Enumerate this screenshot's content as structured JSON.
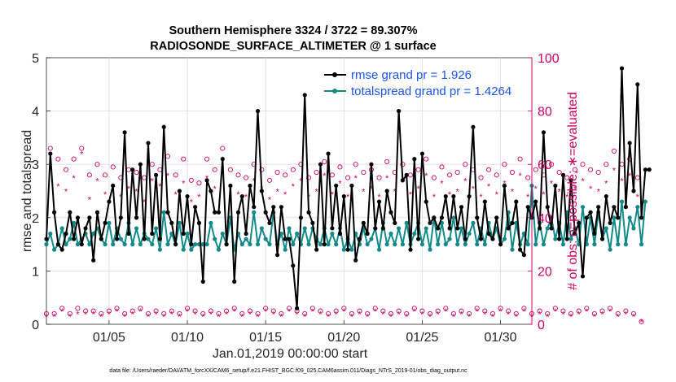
{
  "chart_data": {
    "type": "line",
    "title_line1": "Southern Hemisphere 3324 / 3722 = 89.307%",
    "title_line2": "RADIOSONDE_SURFACE_ALTIMETER @ 1 surface",
    "ylabel_left": "rmse and totalspread",
    "ylabel_right": "# of obs: o=possible; ∗=evaluated",
    "xlabel": "Jan.01,2019 00:00:00 start",
    "footnote": "data file: /Users/raeder/DAI/ATM_forcXX/CAM6_setup/f.e21.FHIST_BGC.f09_025.CAM6assim.011/Diags_NTrS_2019-01/obs_diag_output.nc",
    "xlim": [
      1,
      32
    ],
    "ylim_left": [
      0,
      5
    ],
    "ylim_right": [
      0,
      100
    ],
    "yticks_left": [
      "0",
      "1",
      "2",
      "3",
      "4",
      "5"
    ],
    "yticks_right": [
      "0",
      "20",
      "40",
      "60",
      "80",
      "100"
    ],
    "xticks": [
      {
        "value": 5,
        "label": "01/05"
      },
      {
        "value": 10,
        "label": "01/10"
      },
      {
        "value": 15,
        "label": "01/15"
      },
      {
        "value": 20,
        "label": "01/20"
      },
      {
        "value": 25,
        "label": "01/25"
      },
      {
        "value": 30,
        "label": "01/30"
      }
    ],
    "colors": {
      "rmse": "#000000",
      "spread": "#128a8a",
      "obs": "#cc0066",
      "legend_text": "#1a55e6"
    },
    "series": [
      {
        "name": "rmse",
        "legend": "rmse grand pr = 1.926",
        "x_start": 1.0,
        "x_step": 0.25,
        "values": [
          1.6,
          3.2,
          2.1,
          1.5,
          1.4,
          1.7,
          2.1,
          1.6,
          2.0,
          1.5,
          1.8,
          2.0,
          1.2,
          2.1,
          1.6,
          1.9,
          2.3,
          2.6,
          1.6,
          2.0,
          3.6,
          1.7,
          2.9,
          2.0,
          3.0,
          1.6,
          3.4,
          1.7,
          2.8,
          1.6,
          3.7,
          2.1,
          1.9,
          1.5,
          2.5,
          1.7,
          2.4,
          1.5,
          2.2,
          1.9,
          0.8,
          2.7,
          2.5,
          2.1,
          2.1,
          3.1,
          1.5,
          2.6,
          0.8,
          2.1,
          2.4,
          1.7,
          2.6,
          2.2,
          4.0,
          2.5,
          2.1,
          1.9,
          2.2,
          1.3,
          2.2,
          1.6,
          1.6,
          1.1,
          0.3,
          2.0,
          4.3,
          2.1,
          1.9,
          1.4,
          3.0,
          1.5,
          3.2,
          1.8,
          2.6,
          1.7,
          2.4,
          1.4,
          2.6,
          1.2,
          1.6,
          1.9,
          1.7,
          3.0,
          1.8,
          2.3,
          1.8,
          2.5,
          2.1,
          1.9,
          4.0,
          2.7,
          2.8,
          1.4,
          3.1,
          1.6,
          3.2,
          2.3,
          1.9,
          2.0,
          1.8,
          2.0,
          2.4,
          1.8,
          2.4,
          1.8,
          2.2,
          1.6,
          2.4,
          3.7,
          2.0,
          1.6,
          2.3,
          1.7,
          1.6,
          2.0,
          1.5,
          2.6,
          1.8,
          1.9,
          2.3,
          1.4,
          1.3,
          2.2,
          2.0,
          2.3,
          1.8,
          3.6,
          2.2,
          1.8,
          2.6,
          1.6,
          2.8,
          1.6,
          2.7,
          1.7,
          1.9,
          0.9,
          2.0,
          2.1,
          1.7,
          2.2,
          1.6,
          2.4,
          1.9,
          2.2,
          2.0,
          4.8,
          2.2,
          3.4,
          2.5,
          4.5,
          2.0,
          2.9,
          2.9
        ]
      },
      {
        "name": "totalspread",
        "legend": "totalspread grand pr = 1.4264",
        "x_start": 1.0,
        "x_step": 0.25,
        "values": [
          1.5,
          1.7,
          1.4,
          1.5,
          1.8,
          1.5,
          1.6,
          1.9,
          1.5,
          1.6,
          1.7,
          1.5,
          1.7,
          1.8,
          1.6,
          1.5,
          1.9,
          1.5,
          1.8,
          1.6,
          1.5,
          1.9,
          1.5,
          1.8,
          1.5,
          1.7,
          1.6,
          1.5,
          1.8,
          1.4,
          2.1,
          1.5,
          1.7,
          1.5,
          1.9,
          1.4,
          1.7,
          1.4,
          1.5,
          1.5,
          1.5,
          1.5,
          1.9,
          1.6,
          1.4,
          1.7,
          1.5,
          2.0,
          1.4,
          1.7,
          1.5,
          1.6,
          1.5,
          2.1,
          1.5,
          1.8,
          1.6,
          1.5,
          2.1,
          1.5,
          1.7,
          1.4,
          1.8,
          1.5,
          1.7,
          1.5,
          1.8,
          1.5,
          1.8,
          1.6,
          1.5,
          1.8,
          1.5,
          1.7,
          1.5,
          1.8,
          1.4,
          1.6,
          1.4,
          1.7,
          1.5,
          1.8,
          1.5,
          1.6,
          1.8,
          1.4,
          1.9,
          1.5,
          1.7,
          1.5,
          1.8,
          1.5,
          1.9,
          1.5,
          1.7,
          1.9,
          1.5,
          1.8,
          1.4,
          2.0,
          1.5,
          1.9,
          1.5,
          1.6,
          2.0,
          1.5,
          1.8,
          1.5,
          1.7,
          1.9,
          1.5,
          1.8,
          1.5,
          1.9,
          1.6,
          1.8,
          1.5,
          1.6,
          2.1,
          1.4,
          1.9,
          1.5,
          1.7,
          1.5,
          2.6,
          1.5,
          1.9,
          1.5,
          1.8,
          2.0,
          1.6,
          1.9,
          1.5,
          2.1,
          1.6,
          1.8,
          1.5,
          2.2,
          1.5,
          2.0,
          1.5,
          2.1,
          1.6,
          1.8,
          1.4,
          2.0,
          1.5,
          2.3,
          1.5,
          2.0,
          1.8,
          2.2,
          1.5,
          2.3
        ]
      },
      {
        "name": "obs_possible",
        "marker": "circle",
        "x_start": 1.0,
        "x_step": 0.25,
        "values": [
          4,
          66,
          4,
          62,
          6,
          58,
          4,
          62,
          6,
          66,
          5,
          56,
          5,
          60,
          4,
          56,
          5,
          59,
          6,
          55,
          4,
          58,
          5,
          57,
          6,
          55,
          4,
          60,
          5,
          58,
          4,
          63,
          5,
          56,
          4,
          62,
          6,
          54,
          5,
          53,
          4,
          62,
          5,
          58,
          4,
          66,
          5,
          58,
          6,
          56,
          4,
          55,
          5,
          60,
          4,
          58,
          6,
          54,
          5,
          57,
          4,
          56,
          6,
          58,
          5,
          60,
          4,
          55,
          6,
          57,
          5,
          61,
          4,
          56,
          5,
          59,
          6,
          55,
          4,
          60,
          5,
          57,
          4,
          58,
          6,
          55,
          5,
          61,
          4,
          57,
          5,
          60,
          4,
          56,
          6,
          58,
          5,
          62,
          4,
          55,
          5,
          59,
          6,
          56,
          4,
          57,
          5,
          60,
          4,
          58,
          6,
          55,
          5,
          58,
          4,
          56,
          6,
          60,
          5,
          57,
          4,
          62,
          6,
          55,
          4,
          58,
          5,
          56,
          4,
          60,
          6,
          57,
          5,
          55,
          4,
          58,
          5,
          60,
          6,
          58,
          4,
          57,
          5,
          60,
          6,
          65,
          4,
          60,
          5,
          62,
          4,
          55,
          1
        ]
      },
      {
        "name": "obs_evaluated",
        "marker": "asterisk",
        "x_start": 1.0,
        "x_step": 0.25,
        "values": [
          3,
          58,
          3,
          52,
          5,
          50,
          3,
          55,
          4,
          64,
          4,
          47,
          4,
          54,
          3,
          49,
          4,
          52,
          5,
          48,
          3,
          51,
          4,
          50,
          5,
          46,
          3,
          54,
          4,
          52,
          3,
          56,
          4,
          49,
          3,
          53,
          5,
          46,
          4,
          48,
          3,
          55,
          4,
          51,
          3,
          62,
          4,
          51,
          5,
          49,
          3,
          48,
          4,
          54,
          3,
          51,
          5,
          47,
          4,
          50,
          3,
          49,
          5,
          52,
          4,
          54,
          3,
          48,
          5,
          50,
          4,
          56,
          3,
          49,
          4,
          53,
          5,
          48,
          3,
          55,
          4,
          50,
          3,
          51,
          5,
          48,
          4,
          55,
          3,
          50,
          4,
          54,
          3,
          49,
          5,
          51,
          4,
          56,
          3,
          48,
          4,
          53,
          5,
          49,
          3,
          50,
          4,
          54,
          3,
          51,
          5,
          48,
          4,
          52,
          3,
          49,
          5,
          53,
          4,
          50,
          3,
          56,
          5,
          48,
          3,
          51,
          4,
          49,
          3,
          53,
          5,
          50,
          4,
          48,
          3,
          51,
          4,
          54,
          5,
          51,
          3,
          50,
          4,
          53,
          5,
          58,
          3,
          54,
          4,
          56,
          3,
          48,
          1
        ]
      }
    ]
  }
}
